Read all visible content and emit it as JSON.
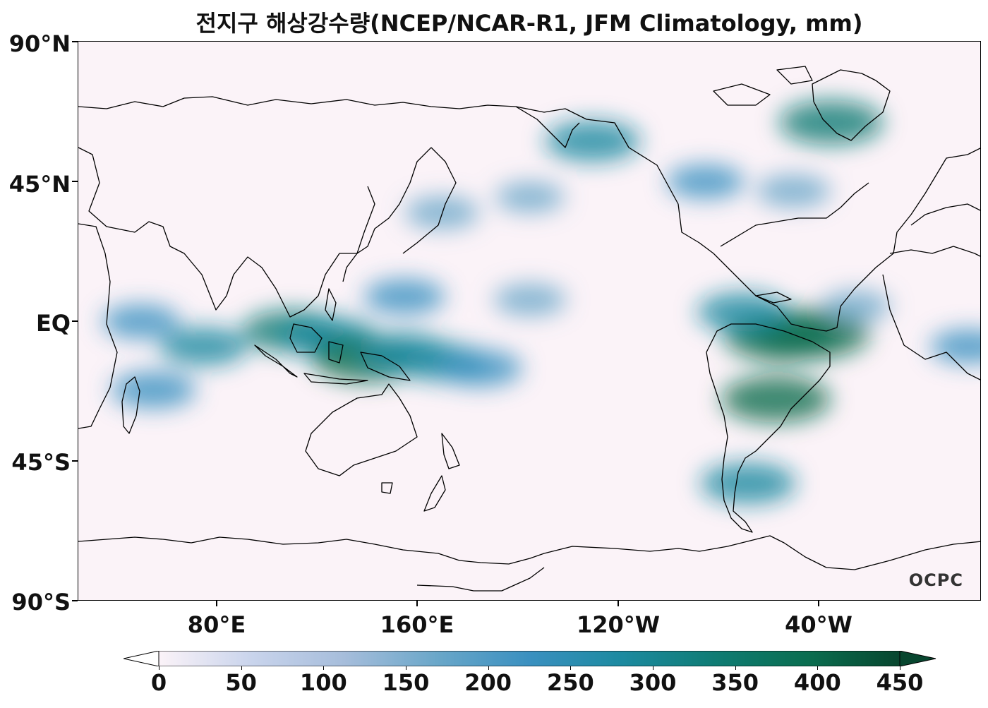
{
  "title": "전지구 해상강수량(NCEP/NCAR-R1, JFM Climatology, mm)",
  "lat_labels": [
    "90°N",
    "45°N",
    "EQ",
    "45°S",
    "90°S"
  ],
  "lon_labels": [
    "80°E",
    "160°E",
    "120°W",
    "40°W"
  ],
  "watermark": "OCPC",
  "colorbar": {
    "ticks": [
      "0",
      "50",
      "100",
      "150",
      "200",
      "250",
      "300",
      "350",
      "400",
      "450"
    ],
    "min": 0,
    "max": 450,
    "extend": "both",
    "colors": [
      "#fbf3f8",
      "#c9d4ec",
      "#a6bddb",
      "#6aa7c9",
      "#3a90c0",
      "#1c8aa0",
      "#0f7c74",
      "#0a6e50",
      "#08462f"
    ]
  },
  "chart_data": {
    "type": "heatmap",
    "title": "전지구 해상강수량(NCEP/NCAR-R1, JFM Climatology, mm)",
    "xlabel": "",
    "ylabel": "",
    "lon_range": [
      20,
      380
    ],
    "lat_range": [
      -90,
      90
    ],
    "x_ticks": [
      "80°E",
      "160°E",
      "120°W",
      "40°W"
    ],
    "y_ticks": [
      "90°N",
      "45°N",
      "EQ",
      "45°S",
      "90°S"
    ],
    "value_range": [
      0,
      450
    ],
    "units": "mm",
    "regions": [
      {
        "lon": 270,
        "lat": 45,
        "value": 200
      },
      {
        "lon": 305,
        "lat": 42,
        "value": 180
      },
      {
        "lon": 45,
        "lat": 0,
        "value": 200
      },
      {
        "lon": 70,
        "lat": -8,
        "value": 260
      },
      {
        "lon": 105,
        "lat": -3,
        "value": 320
      },
      {
        "lon": 120,
        "lat": -5,
        "value": 300
      },
      {
        "lon": 135,
        "lat": -12,
        "value": 380
      },
      {
        "lon": 150,
        "lat": -10,
        "value": 280
      },
      {
        "lon": 165,
        "lat": -13,
        "value": 260
      },
      {
        "lon": 180,
        "lat": -15,
        "value": 240
      },
      {
        "lon": 150,
        "lat": 8,
        "value": 220
      },
      {
        "lon": 200,
        "lat": 7,
        "value": 170
      },
      {
        "lon": 165,
        "lat": 35,
        "value": 180
      },
      {
        "lon": 200,
        "lat": 40,
        "value": 150
      },
      {
        "lon": 225,
        "lat": 58,
        "value": 300
      },
      {
        "lon": 300,
        "lat": -5,
        "value": 400
      },
      {
        "lon": 312,
        "lat": -4,
        "value": 420
      },
      {
        "lon": 298,
        "lat": -25,
        "value": 380
      },
      {
        "lon": 287,
        "lat": -52,
        "value": 300
      },
      {
        "lon": 285,
        "lat": 3,
        "value": 280
      },
      {
        "lon": 320,
        "lat": 64,
        "value": 350
      },
      {
        "lon": 50,
        "lat": -22,
        "value": 240
      },
      {
        "lon": 330,
        "lat": 5,
        "value": 150
      },
      {
        "lon": 375,
        "lat": -8,
        "value": 200
      }
    ]
  }
}
